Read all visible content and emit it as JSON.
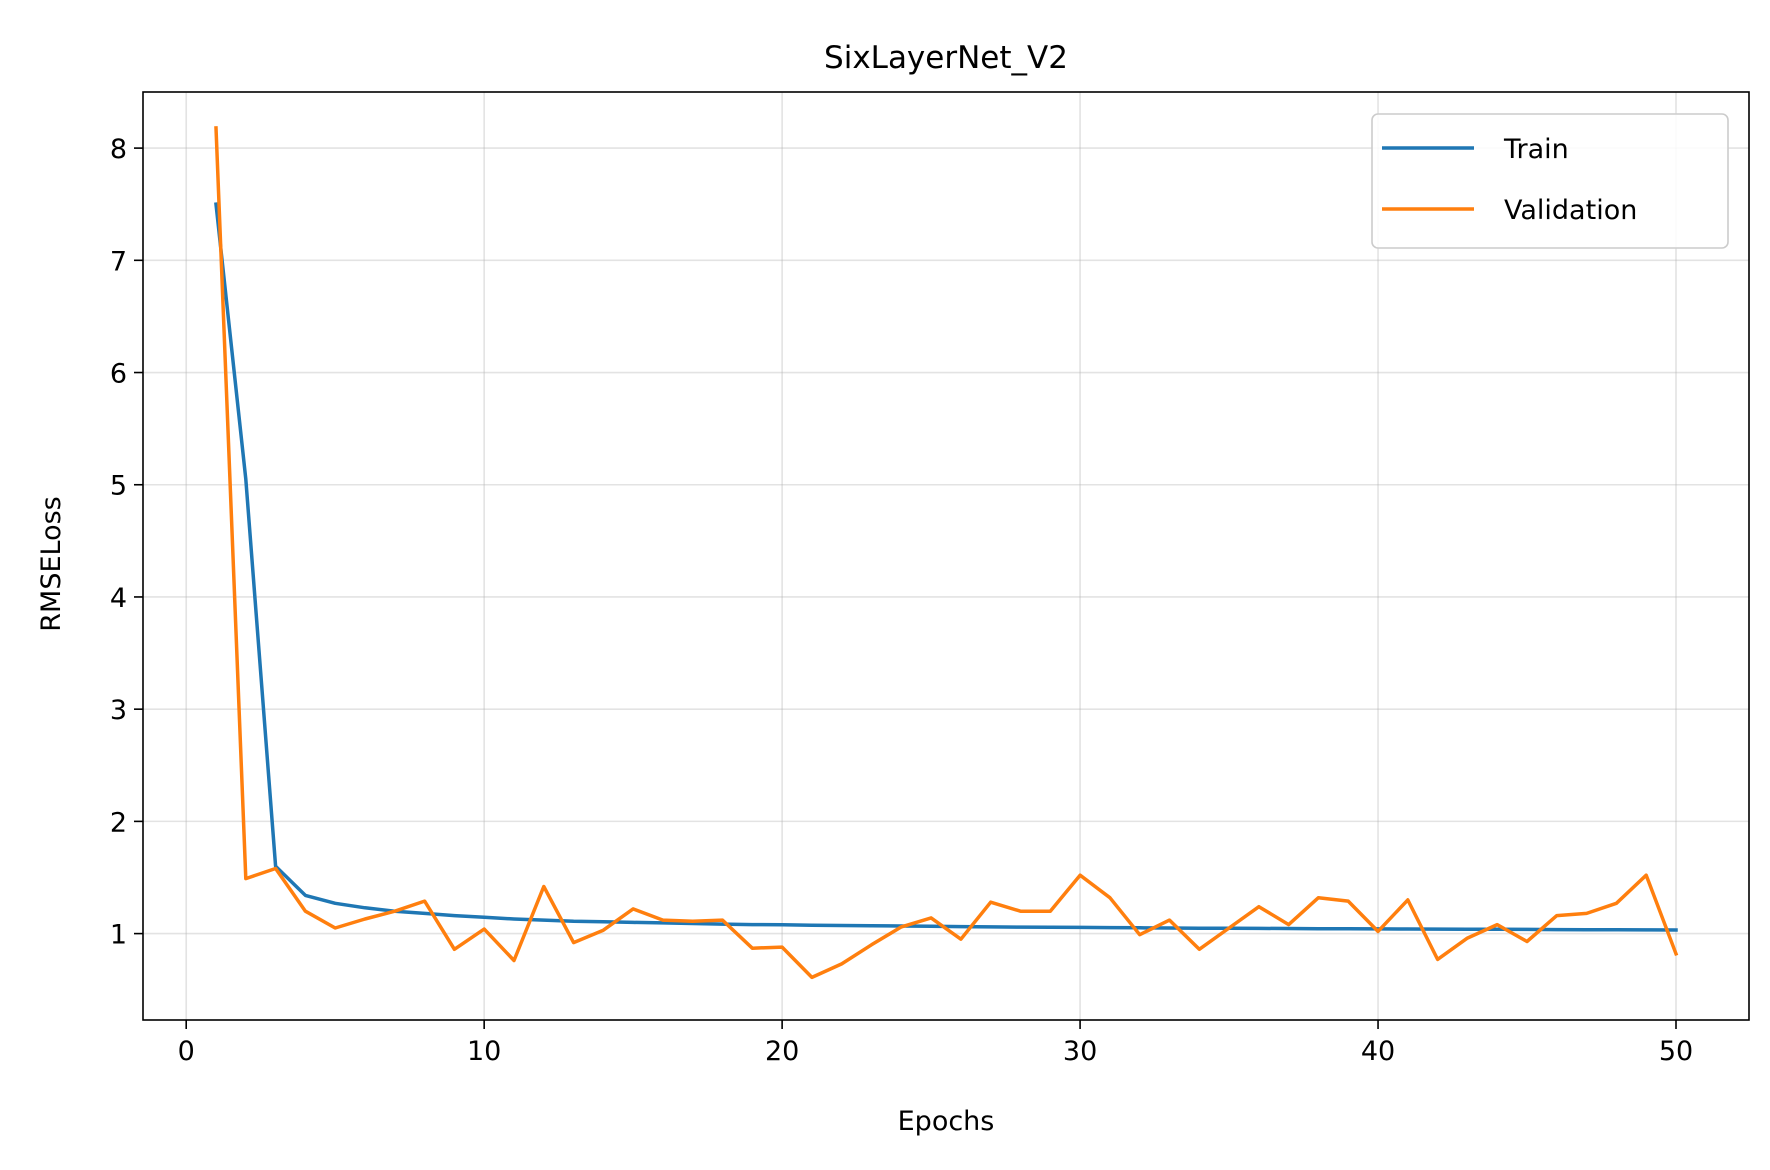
{
  "chart_data": {
    "type": "line",
    "title": "SixLayerNet_V2",
    "xlabel": "Epochs",
    "ylabel": "RMSELoss",
    "xlim": [
      -1.45,
      52.45
    ],
    "ylim": [
      0.23,
      8.5
    ],
    "xticks": [
      0,
      10,
      20,
      30,
      40,
      50
    ],
    "yticks": [
      1,
      2,
      3,
      4,
      5,
      6,
      7,
      8
    ],
    "grid": true,
    "legend": "top-right",
    "x": [
      1,
      2,
      3,
      4,
      5,
      6,
      7,
      8,
      9,
      10,
      11,
      12,
      13,
      14,
      15,
      16,
      17,
      18,
      19,
      20,
      21,
      22,
      23,
      24,
      25,
      26,
      27,
      28,
      29,
      30,
      31,
      32,
      33,
      34,
      35,
      36,
      37,
      38,
      39,
      40,
      41,
      42,
      43,
      44,
      45,
      46,
      47,
      48,
      49,
      50
    ],
    "series": [
      {
        "name": "Train",
        "color": "#1f77b4",
        "values": [
          7.5,
          5.05,
          1.6,
          1.34,
          1.27,
          1.23,
          1.2,
          1.18,
          1.16,
          1.145,
          1.13,
          1.12,
          1.11,
          1.105,
          1.1,
          1.095,
          1.09,
          1.085,
          1.08,
          1.078,
          1.075,
          1.072,
          1.07,
          1.068,
          1.065,
          1.062,
          1.06,
          1.058,
          1.056,
          1.055,
          1.053,
          1.052,
          1.05,
          1.048,
          1.047,
          1.046,
          1.045,
          1.044,
          1.043,
          1.042,
          1.041,
          1.04,
          1.039,
          1.038,
          1.037,
          1.036,
          1.035,
          1.034,
          1.033,
          1.032
        ]
      },
      {
        "name": "Validation",
        "color": "#ff7f0e",
        "values": [
          8.18,
          1.49,
          1.58,
          1.2,
          1.05,
          1.13,
          1.2,
          1.29,
          0.86,
          1.04,
          0.76,
          1.42,
          0.92,
          1.03,
          1.22,
          1.12,
          1.11,
          1.12,
          0.87,
          0.88,
          0.61,
          0.73,
          0.9,
          1.06,
          1.14,
          0.95,
          1.28,
          1.2,
          1.2,
          1.52,
          1.32,
          0.99,
          1.12,
          0.86,
          1.05,
          1.24,
          1.08,
          1.32,
          1.29,
          1.02,
          1.3,
          0.77,
          0.96,
          1.08,
          0.93,
          1.16,
          1.18,
          1.27,
          1.52,
          0.82
        ]
      }
    ]
  }
}
